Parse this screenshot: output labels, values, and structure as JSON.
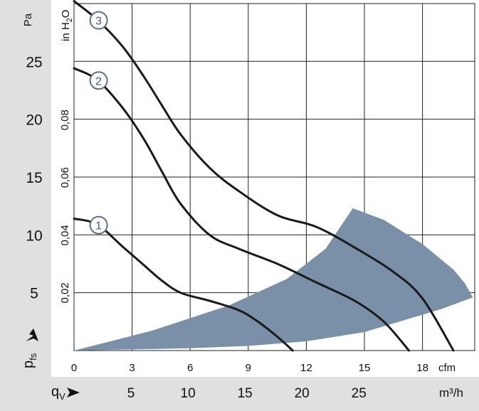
{
  "colors": {
    "panel": "#dfe0e2",
    "grid": "#222222",
    "curve": "#1a1a1a",
    "working_area": "#7a8fa8",
    "label_circle_stroke": "#5f6f85",
    "label_text": "#4a5a70"
  },
  "labels": {
    "pa_unit": "Pa",
    "inh2o_unit": "in H2O",
    "pfs_main": "p",
    "pfs_sub": "fs",
    "cfm_unit": "cfm",
    "qv_main": "q",
    "qv_sub": "V",
    "m3h_unit": "m³/h"
  },
  "chart_data": {
    "type": "line",
    "x_unit": "cfm",
    "xlim": [
      0,
      23.5
    ],
    "ylim": [
      0,
      30
    ],
    "grid": true,
    "x_ticks_cfm": [
      "0",
      "3",
      "6",
      "9",
      "12",
      "15",
      "18"
    ],
    "x_ticks_m3h": [
      "5",
      "10",
      "15",
      "20",
      "25"
    ],
    "y_ticks_pa": [
      "5",
      "10",
      "15",
      "20",
      "25"
    ],
    "y_ticks_inh2o": [
      "0,02",
      "0,04",
      "0,06",
      "0,08"
    ],
    "series": [
      {
        "name": "1",
        "x": [
          0,
          1.2,
          2.5,
          3.6,
          4.5,
          5.5,
          7,
          8.5,
          9.5,
          10.5,
          11.3
        ],
        "y": [
          11.4,
          10.9,
          9.0,
          7.4,
          6.1,
          5.0,
          4.3,
          3.5,
          2.5,
          1.2,
          0
        ]
      },
      {
        "name": "2",
        "x": [
          0,
          1.2,
          2.5,
          3.6,
          4.5,
          5.5,
          7,
          8.5,
          10.5,
          12.5,
          14.5,
          16,
          17.3
        ],
        "y": [
          24.4,
          23.4,
          21.0,
          18.3,
          15.6,
          12.7,
          10.0,
          8.8,
          7.5,
          5.9,
          4.3,
          2.5,
          0
        ]
      },
      {
        "name": "3",
        "x": [
          0,
          1.2,
          2.5,
          3.6,
          4.5,
          5.5,
          7,
          8.5,
          10.5,
          12.5,
          14.5,
          16.5,
          18,
          19.6
        ],
        "y": [
          30.2,
          28.6,
          26.3,
          23.7,
          21.3,
          18.7,
          15.8,
          13.8,
          11.7,
          10.7,
          8.9,
          6.8,
          4.5,
          0
        ]
      }
    ],
    "working_area": {
      "x": [
        0,
        4,
        8,
        11,
        13,
        14.4,
        16,
        18,
        19.6,
        20.2,
        20.6,
        19,
        17,
        15,
        12,
        9,
        6,
        3,
        0
      ],
      "y": [
        0,
        1.7,
        3.9,
        6.2,
        8.8,
        12.3,
        11.3,
        9.2,
        7.0,
        5.8,
        4.6,
        3.6,
        2.6,
        1.6,
        0.8,
        0.4,
        0.2,
        0.1,
        0
      ]
    }
  }
}
